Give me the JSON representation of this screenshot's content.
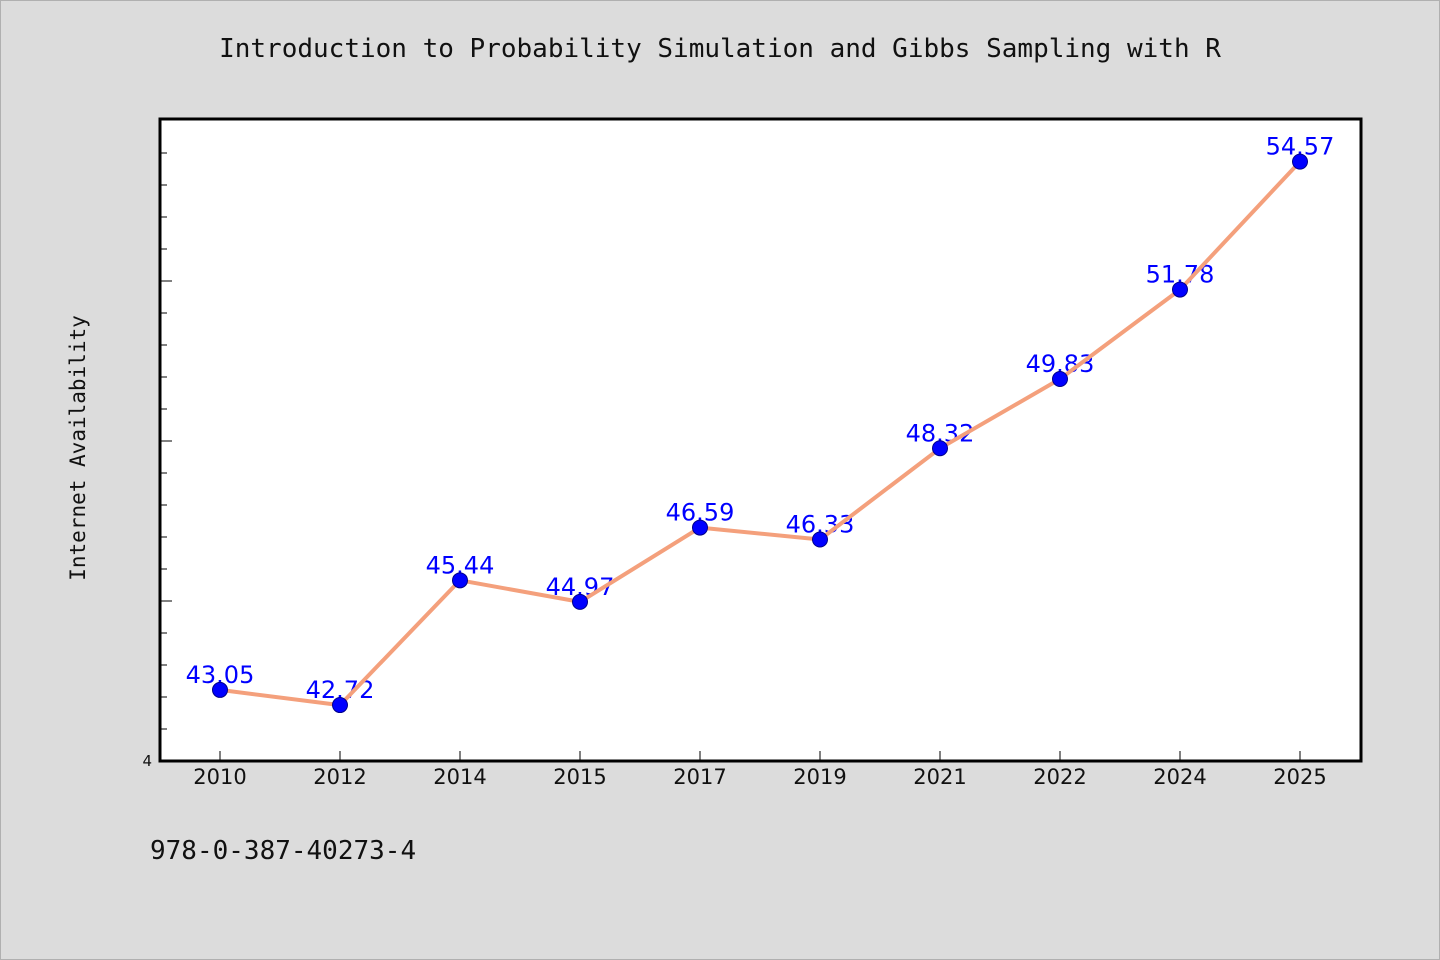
{
  "colors": {
    "background": "#dcdcdc",
    "plot_background": "#ffffff",
    "line": "#f4a07c",
    "marker": "#0000ff",
    "label": "#0000ff"
  },
  "isbn": "978-0-387-40273-4",
  "chart_data": {
    "type": "line",
    "title": "Introduction to Probability Simulation and Gibbs Sampling with R",
    "xlabel": "",
    "ylabel": "Internet Availability",
    "categories": [
      "2010",
      "2012",
      "2014",
      "2015",
      "2017",
      "2019",
      "2021",
      "2022",
      "2024",
      "2025"
    ],
    "series": [
      {
        "values": [
          43.05,
          42.72,
          45.44,
          44.97,
          46.59,
          46.33,
          48.32,
          49.83,
          51.78,
          54.57
        ],
        "labels": [
          "43.05",
          "42.72",
          "45.44",
          "44.97",
          "46.59",
          "46.33",
          "48.32",
          "49.83",
          "51.78",
          "54.57"
        ]
      }
    ],
    "ylim": [
      41.5,
      55.5
    ],
    "y_tick_labels": [
      "4"
    ],
    "grid": false,
    "legend": "none"
  }
}
